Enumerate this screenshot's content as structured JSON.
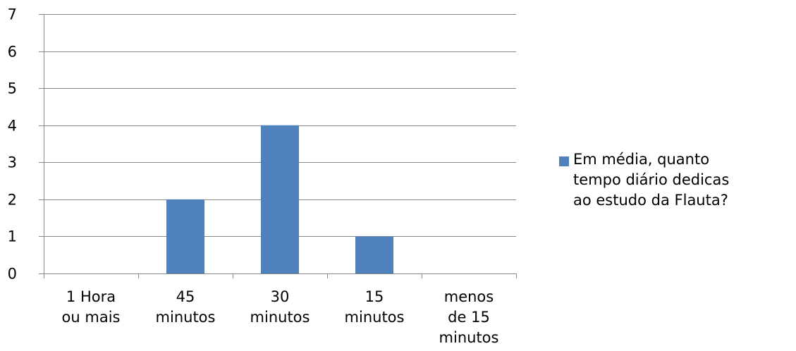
{
  "chart_data": {
    "type": "bar",
    "categories": [
      "1 Hora\nou mais",
      "45\nminutos",
      "30\nminutos",
      "15\nminutos",
      "menos\nde 15\nminutos"
    ],
    "series": [
      {
        "name": "Em média, quanto\ntempo diário dedicas\nao estudo da Flauta?",
        "values": [
          0,
          2,
          4,
          1,
          0
        ]
      }
    ],
    "ylim": [
      0,
      7
    ],
    "yticks": [
      0,
      1,
      2,
      3,
      4,
      5,
      6,
      7
    ],
    "grid": true,
    "legend_position": "right",
    "colors": {
      "bar": "#4F81BD",
      "gridline": "#878787",
      "axis": "#878787"
    }
  }
}
